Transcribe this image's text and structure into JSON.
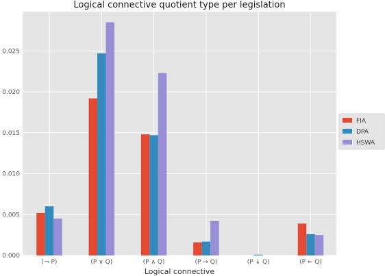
{
  "chart_data": {
    "type": "bar",
    "title": "Logical connective quotient  type per legislation",
    "xlabel": "Logical connective",
    "ylabel": "",
    "categories": [
      "(¬ P)",
      "(P ∨ Q)",
      "(P ∧ Q)",
      "(P → Q)",
      "(P ↓ Q)",
      "(P ← Q)"
    ],
    "series": [
      {
        "name": "FIA",
        "color": "#E24A33",
        "values": [
          0.0052,
          0.0192,
          0.0148,
          0.0016,
          0.0,
          0.0039
        ]
      },
      {
        "name": "DPA",
        "color": "#348ABD",
        "values": [
          0.006,
          0.0247,
          0.0147,
          0.0017,
          0.0001,
          0.0026
        ]
      },
      {
        "name": "HSWA",
        "color": "#988ED5",
        "values": [
          0.0045,
          0.0285,
          0.0223,
          0.0042,
          0.0,
          0.0025
        ]
      }
    ],
    "ylim": [
      0,
      0.0298
    ],
    "yticks": [
      0.0,
      0.005,
      0.01,
      0.015,
      0.02,
      0.025
    ],
    "ytick_labels": [
      "0.000",
      "0.005",
      "0.010",
      "0.015",
      "0.020",
      "0.025"
    ],
    "grid": true,
    "legend_position": "right-outside",
    "colors": {
      "background": "#E5E5E5",
      "grid": "#FFFFFF"
    }
  }
}
